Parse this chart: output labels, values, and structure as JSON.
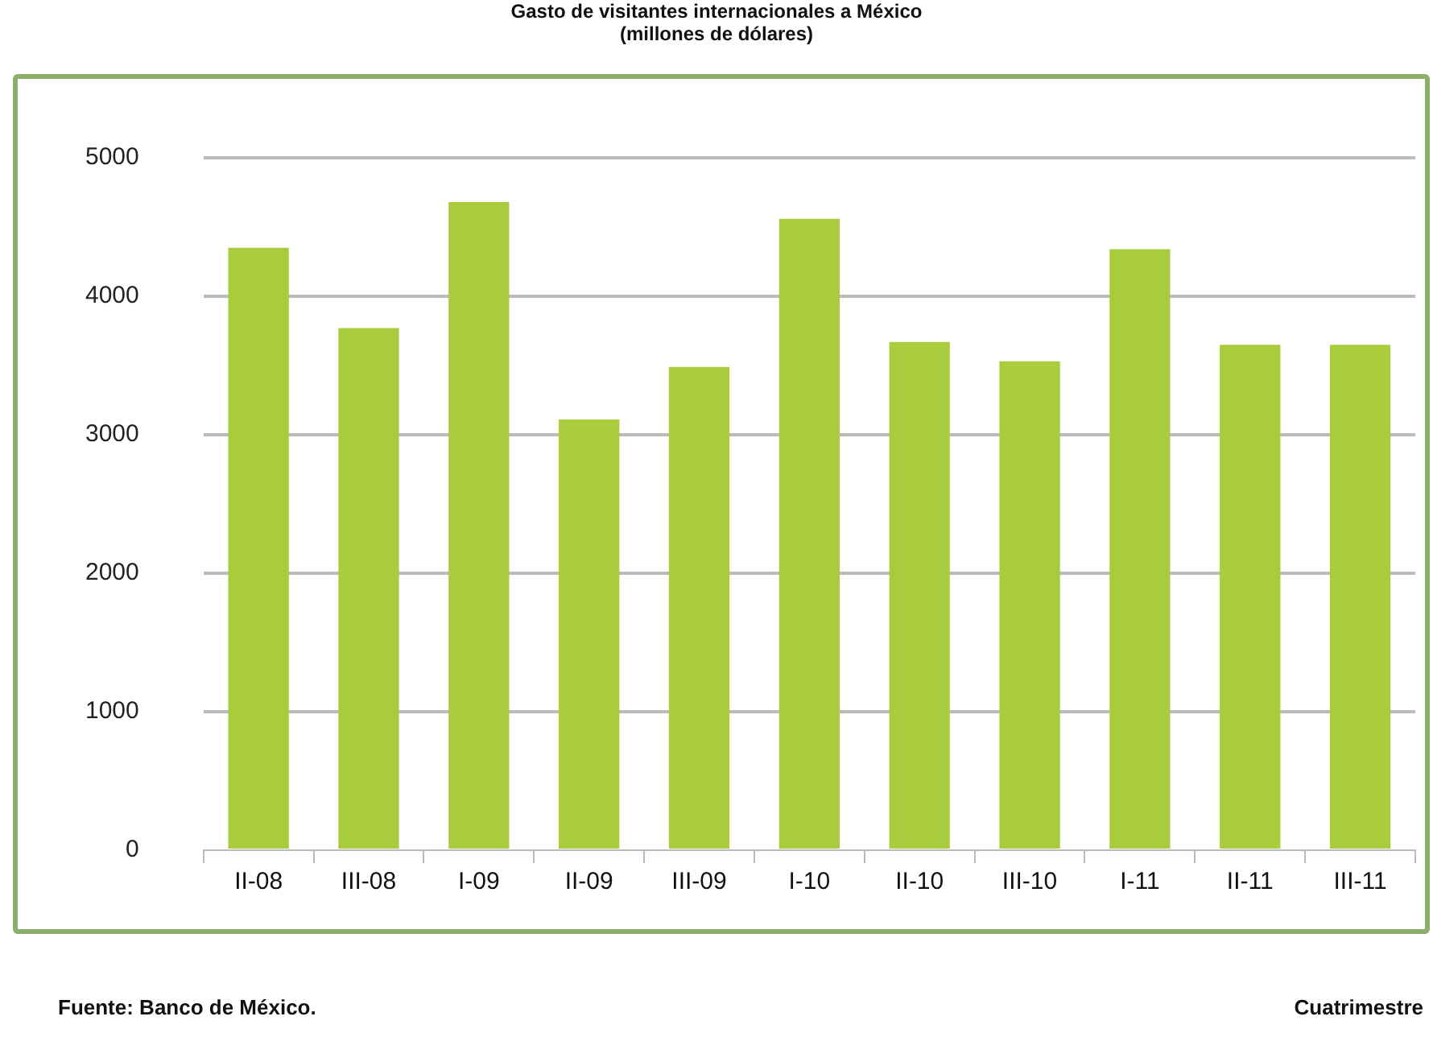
{
  "chart_data": {
    "type": "bar",
    "title": "Gasto de visitantes internacionales a México",
    "subtitle": "(millones de dólares)",
    "categories": [
      "II-08",
      "III-08",
      "I-09",
      "II-09",
      "III-09",
      "I-10",
      "II-10",
      "III-10",
      "I-11",
      "II-11",
      "III-11"
    ],
    "values": [
      4350,
      3770,
      4680,
      3110,
      3490,
      4560,
      3670,
      3530,
      4340,
      3650,
      3650
    ],
    "color": "#a8cc3c",
    "ylim": [
      0,
      5000
    ],
    "yticks": [
      0,
      1000,
      2000,
      3000,
      4000,
      5000
    ],
    "grid": "y",
    "annotations": [
      "Fuente: Banco de México.",
      "Cuatrimestre"
    ]
  }
}
